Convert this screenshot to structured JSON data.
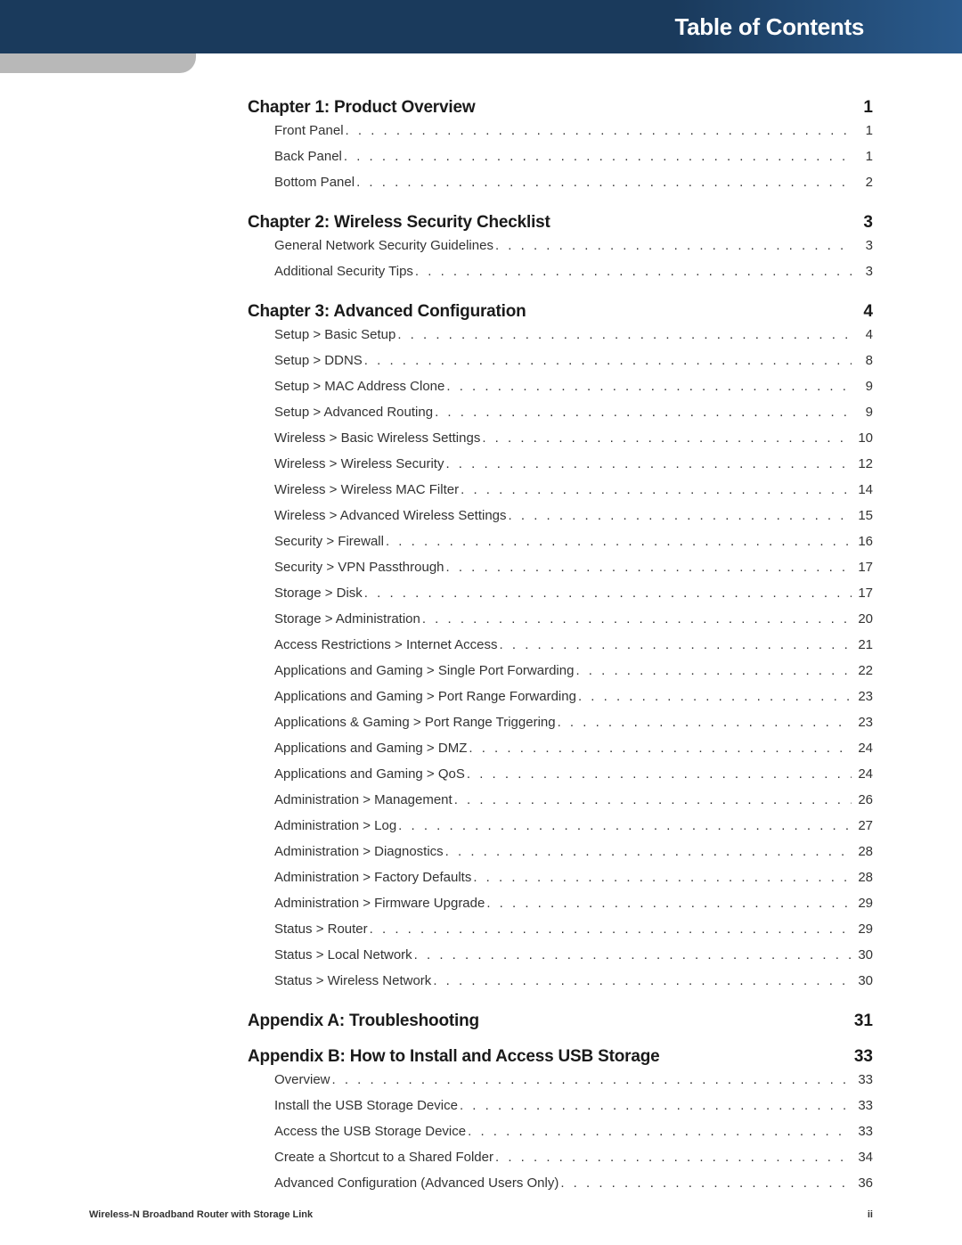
{
  "header": {
    "title": "Table of Contents"
  },
  "footer": {
    "product": "Wireless-N Broadband Router with Storage Link",
    "page": "ii"
  },
  "colors": {
    "header_bg_left": "#1a3a5c",
    "header_bg_right": "#2a5a8c",
    "sidebar_block": "#b8b8b8",
    "text": "#1a1a1a"
  },
  "sections": [
    {
      "title": "Chapter 1: Product Overview",
      "page": "1",
      "items": [
        {
          "title": "Front Panel",
          "page": "1"
        },
        {
          "title": "Back Panel",
          "page": "1"
        },
        {
          "title": "Bottom Panel",
          "page": "2"
        }
      ]
    },
    {
      "title": "Chapter 2: Wireless Security Checklist",
      "page": "3",
      "items": [
        {
          "title": "General Network Security Guidelines",
          "page": "3"
        },
        {
          "title": "Additional Security Tips",
          "page": "3"
        }
      ]
    },
    {
      "title": "Chapter 3: Advanced Configuration",
      "page": "4",
      "items": [
        {
          "title": "Setup > Basic Setup",
          "page": "4"
        },
        {
          "title": "Setup > DDNS",
          "page": "8"
        },
        {
          "title": "Setup > MAC Address Clone",
          "page": "9"
        },
        {
          "title": "Setup > Advanced Routing",
          "page": "9"
        },
        {
          "title": "Wireless > Basic Wireless Settings",
          "page": "10"
        },
        {
          "title": "Wireless > Wireless Security",
          "page": "12"
        },
        {
          "title": "Wireless > Wireless MAC Filter",
          "page": "14"
        },
        {
          "title": "Wireless > Advanced Wireless Settings",
          "page": "15"
        },
        {
          "title": "Security > Firewall",
          "page": "16"
        },
        {
          "title": "Security > VPN Passthrough",
          "page": "17"
        },
        {
          "title": "Storage > Disk",
          "page": "17"
        },
        {
          "title": "Storage > Administration",
          "page": "20"
        },
        {
          "title": "Access Restrictions > Internet Access",
          "page": "21"
        },
        {
          "title": "Applications and Gaming > Single Port Forwarding",
          "page": "22"
        },
        {
          "title": "Applications and Gaming > Port Range Forwarding",
          "page": "23"
        },
        {
          "title": "Applications & Gaming > Port Range Triggering",
          "page": "23"
        },
        {
          "title": "Applications and Gaming > DMZ",
          "page": "24"
        },
        {
          "title": "Applications and Gaming > QoS",
          "page": "24"
        },
        {
          "title": "Administration > Management",
          "page": "26"
        },
        {
          "title": "Administration > Log",
          "page": "27"
        },
        {
          "title": "Administration > Diagnostics",
          "page": "28"
        },
        {
          "title": "Administration > Factory Defaults",
          "page": "28"
        },
        {
          "title": "Administration > Firmware Upgrade",
          "page": "29"
        },
        {
          "title": "Status > Router",
          "page": "29"
        },
        {
          "title": "Status > Local Network",
          "page": "30"
        },
        {
          "title": "Status > Wireless Network",
          "page": "30"
        }
      ]
    },
    {
      "title": "Appendix A: Troubleshooting",
      "page": "31",
      "items": []
    },
    {
      "title": "Appendix B: How to Install and Access USB Storage",
      "page": "33",
      "items": [
        {
          "title": "Overview",
          "page": "33"
        },
        {
          "title": "Install the USB Storage Device",
          "page": "33"
        },
        {
          "title": "Access the USB Storage Device",
          "page": "33"
        },
        {
          "title": "Create a Shortcut to a Shared Folder",
          "page": "34"
        },
        {
          "title": "Advanced Configuration (Advanced Users Only)",
          "page": "36"
        }
      ]
    }
  ]
}
